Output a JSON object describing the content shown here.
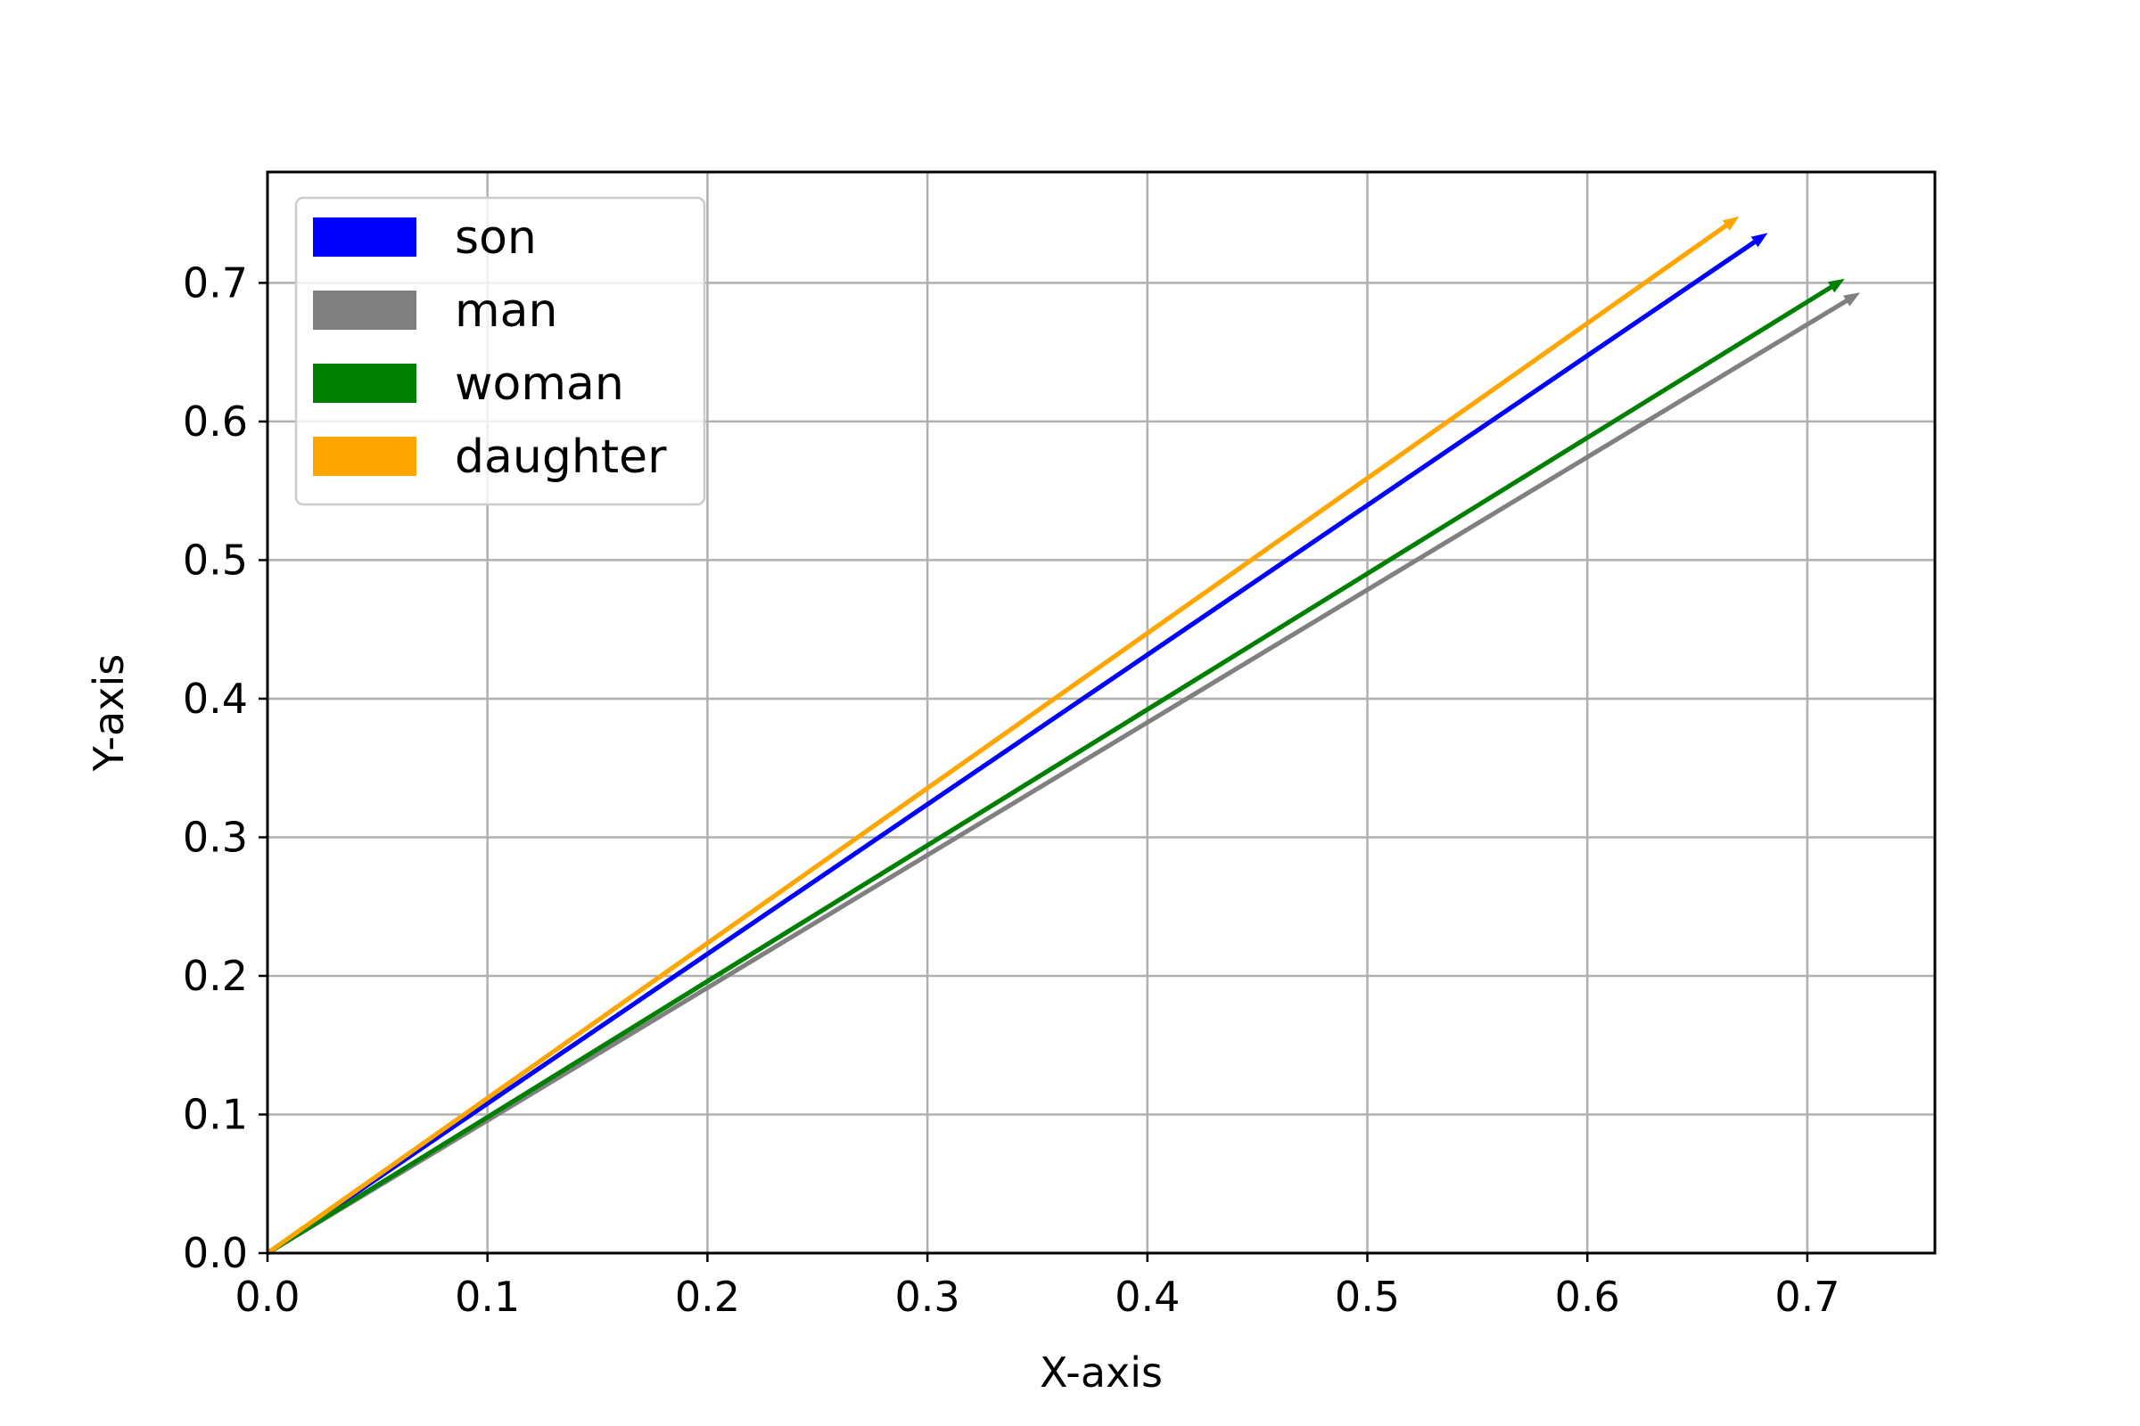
{
  "chart_data": {
    "type": "vector",
    "title": "",
    "xlabel": "X-axis",
    "ylabel": "Y-axis",
    "xlim": [
      0.0,
      0.758
    ],
    "ylim": [
      0.0,
      0.78
    ],
    "xticks": [
      "0.0",
      "0.1",
      "0.2",
      "0.3",
      "0.4",
      "0.5",
      "0.6",
      "0.7"
    ],
    "yticks": [
      "0.0",
      "0.1",
      "0.2",
      "0.3",
      "0.4",
      "0.5",
      "0.6",
      "0.7"
    ],
    "grid": true,
    "legend_position": "top-left",
    "series": [
      {
        "name": "son",
        "color": "#0000ff",
        "origin": [
          0,
          0
        ],
        "vector": [
          0.682,
          0.736
        ]
      },
      {
        "name": "man",
        "color": "#808080",
        "origin": [
          0,
          0
        ],
        "vector": [
          0.724,
          0.693
        ]
      },
      {
        "name": "woman",
        "color": "#008000",
        "origin": [
          0,
          0
        ],
        "vector": [
          0.717,
          0.703
        ]
      },
      {
        "name": "daughter",
        "color": "#ffa500",
        "origin": [
          0,
          0
        ],
        "vector": [
          0.669,
          0.748
        ]
      }
    ]
  }
}
